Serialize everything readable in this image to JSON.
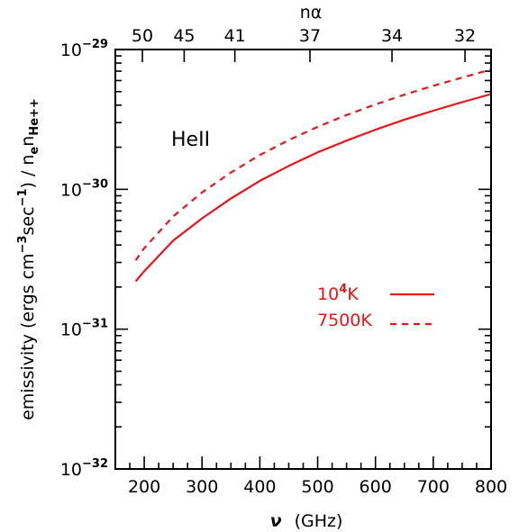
{
  "chart_data": {
    "type": "line",
    "title": "",
    "xlabel_symbol": "ν",
    "xlabel_unit": "(GHz)",
    "ylabel": {
      "prefix": "emissivity (ergs cm",
      "exp1": "−3",
      "mid": "sec",
      "exp2": "−1",
      "suffix": ") / n",
      "sub1": "e",
      "n2": "n",
      "sub2": "He++"
    },
    "top_axis_label": "nα",
    "annotation": "HeII",
    "xlim": [
      150,
      800
    ],
    "ylim": [
      1e-32,
      1e-29
    ],
    "yscale": "log",
    "x_ticks": [
      200,
      300,
      400,
      500,
      600,
      700,
      800
    ],
    "x_tick_labels": [
      "200",
      "300",
      "400",
      "500",
      "600",
      "700",
      "800"
    ],
    "y_ticks": [
      {
        "base": "10",
        "exp": "−32"
      },
      {
        "base": "10",
        "exp": "−31"
      },
      {
        "base": "10",
        "exp": "−30"
      },
      {
        "base": "10",
        "exp": "−29"
      }
    ],
    "top_ticks": [
      {
        "n": 50,
        "x": 196.8,
        "label": "50"
      },
      {
        "n": 45,
        "x": 269.1,
        "label": "45"
      },
      {
        "n": 41,
        "x": 356.8,
        "label": "41"
      },
      {
        "n": 37,
        "x": 486.7,
        "label": "37"
      },
      {
        "n": 34,
        "x": 628.6,
        "label": "34"
      },
      {
        "n": 32,
        "x": 754.9,
        "label": "32"
      }
    ],
    "series": [
      {
        "legend_base": "10",
        "legend_exp": "4",
        "legend_unit": "K",
        "color": "#e8161b",
        "dash": "solid",
        "x": [
          185,
          200,
          250,
          300,
          350,
          400,
          450,
          500,
          550,
          600,
          650,
          700,
          750,
          800
        ],
        "y": [
          2.2e-31,
          2.6e-31,
          4.3e-31,
          6.2e-31,
          8.6e-31,
          1.15e-30,
          1.47e-30,
          1.84e-30,
          2.23e-30,
          2.67e-30,
          3.15e-30,
          3.65e-30,
          4.2e-30,
          4.8e-30
        ]
      },
      {
        "legend_base": "7500",
        "legend_exp": "",
        "legend_unit": "K",
        "color": "#e8161b",
        "dash": "dashed",
        "x": [
          185,
          200,
          250,
          300,
          350,
          400,
          450,
          500,
          550,
          600,
          650,
          700,
          750,
          800
        ],
        "y": [
          3.1e-31,
          3.8e-31,
          6.4e-31,
          9.5e-31,
          1.32e-30,
          1.76e-30,
          2.25e-30,
          2.8e-30,
          3.4e-30,
          4.05e-30,
          4.75e-30,
          5.5e-30,
          6.3e-30,
          7.2e-30
        ]
      }
    ]
  }
}
